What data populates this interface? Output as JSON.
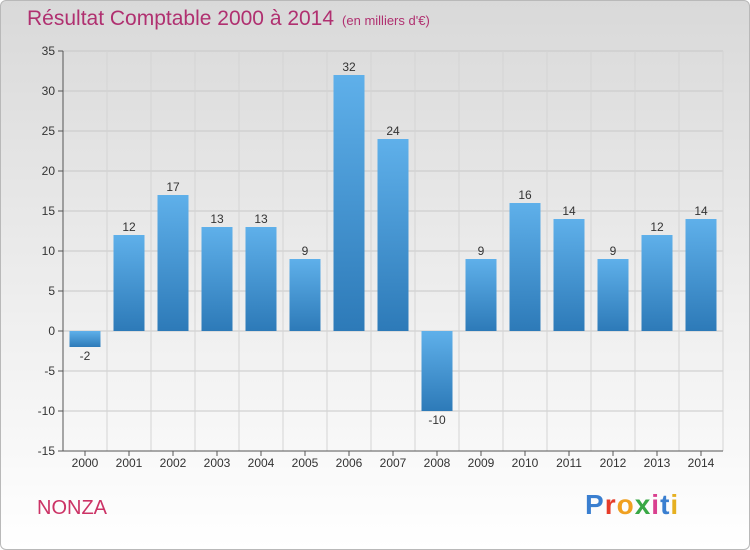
{
  "header": {
    "title": "Résultat Comptable 2000 à 2014",
    "subtitle": "(en milliers d'€)"
  },
  "footer": {
    "town": "NONZA",
    "logo_letters": [
      "P",
      "r",
      "o",
      "x",
      "i",
      "t",
      "i"
    ],
    "logo_colors": [
      "#3a7fd0",
      "#e63c2a",
      "#f0a020",
      "#39a845",
      "#d93f8f",
      "#3a7fd0",
      "#e6b020"
    ]
  },
  "chart_data": {
    "type": "bar",
    "title": "Résultat Comptable 2000 à 2014",
    "subtitle": "(en milliers d'€)",
    "categories": [
      "2000",
      "2001",
      "2002",
      "2003",
      "2004",
      "2005",
      "2006",
      "2007",
      "2008",
      "2009",
      "2010",
      "2011",
      "2012",
      "2013",
      "2014"
    ],
    "values": [
      -2,
      12,
      17,
      13,
      13,
      9,
      32,
      24,
      -10,
      9,
      16,
      14,
      9,
      12,
      14
    ],
    "data_labels": [
      "-2",
      "12",
      "17",
      "13",
      "13",
      "9",
      "32",
      "24",
      "-10",
      "9",
      "16",
      "14",
      "9",
      "12",
      "14"
    ],
    "ylim": [
      -15,
      35
    ],
    "yticks": [
      -15,
      -10,
      -5,
      0,
      5,
      10,
      15,
      20,
      25,
      30,
      35
    ],
    "ytick_labels": [
      "-15",
      "-10",
      "-5",
      "0",
      "5",
      "10",
      "15",
      "20",
      "25",
      "30",
      "35"
    ],
    "xlabel": "",
    "ylabel": "",
    "grid": true,
    "bar_color_top": "#5fb0ea",
    "bar_color_bottom": "#2d7ab8"
  }
}
